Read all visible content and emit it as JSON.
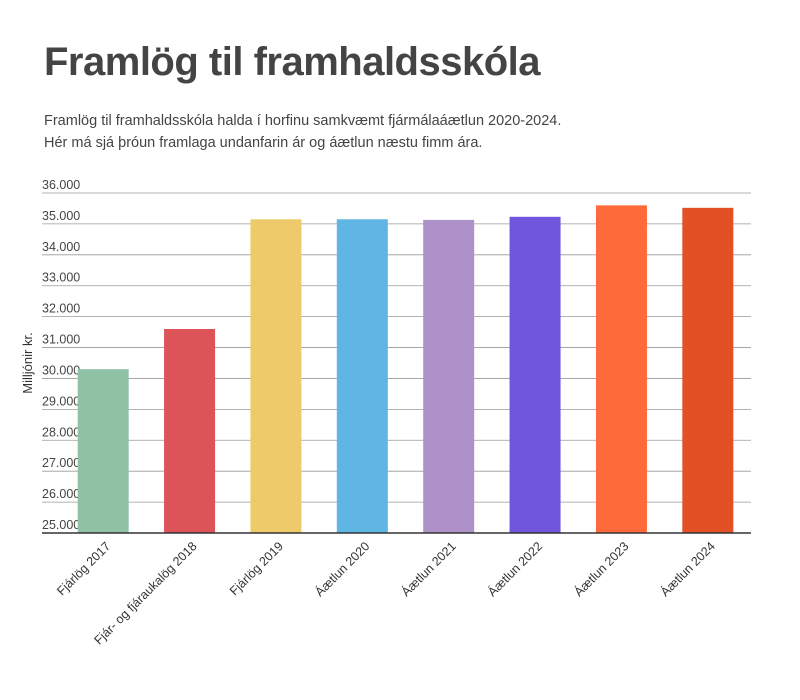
{
  "header": {
    "title": "Framlög til framhaldsskóla",
    "subtitle": "Framlög til framhaldsskóla halda í horfinu samkvæmt fjármálaáætlun 2020-2024. Hér má sjá þróun framlaga  undanfarin ár og áætlun næstu fimm ára."
  },
  "chart_data": {
    "type": "bar",
    "title": "Framlög til framhaldsskóla",
    "ylabel": "Milljónir kr.",
    "xlabel": "",
    "ylim": [
      25000,
      36000
    ],
    "yticks": [
      25000,
      26000,
      27000,
      28000,
      29000,
      30000,
      31000,
      32000,
      33000,
      34000,
      35000,
      36000
    ],
    "ytick_labels": [
      "25.000",
      "26.000",
      "27.000",
      "28.000",
      "29.000",
      "30.000",
      "31.000",
      "32.000",
      "33.000",
      "34.000",
      "35.000",
      "36.000"
    ],
    "categories": [
      "Fjárlög 2017",
      "Fjár- og fjáraukalög 2018",
      "Fjárlög 2019",
      "Áætlun 2020",
      "Áætlun 2021",
      "Áætlun 2022",
      "Áætlun 2023",
      "Áætlun 2024"
    ],
    "values": [
      30300,
      31600,
      35150,
      35150,
      35130,
      35230,
      35600,
      35520
    ],
    "colors": [
      "#8fc1a5",
      "#dc5358",
      "#eecb6a",
      "#5fb5e4",
      "#ad91c8",
      "#6f56dd",
      "#ff6a3a",
      "#e35026"
    ],
    "grid": true,
    "legend": "none"
  }
}
